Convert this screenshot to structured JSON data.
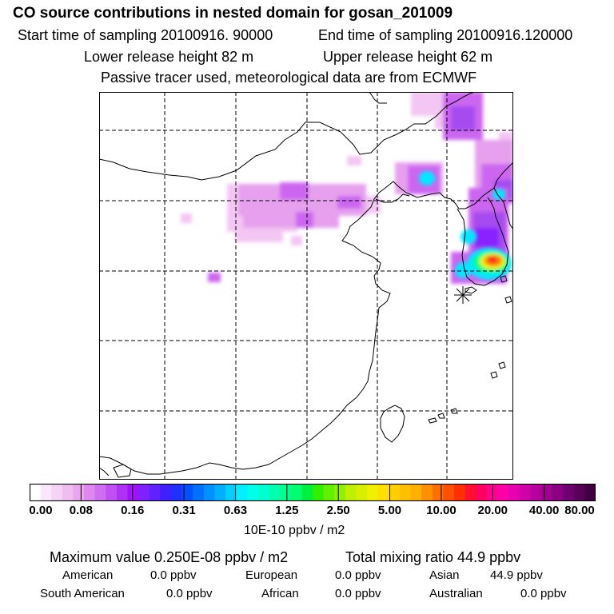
{
  "header": {
    "title": "CO  source contributions in nested domain for gosan_201009",
    "start_label": "Start time of sampling 20100916. 90000",
    "end_label": "End time of sampling 20100916.120000",
    "lower_label": "Lower release height   82 m",
    "upper_label": "Upper release height   62 m",
    "tracer_label": "Passive tracer used, meteorological data are from ECMWF"
  },
  "colorbar": {
    "tick_labels": [
      "0.00",
      "0.08",
      "0.16",
      "0.31",
      "0.63",
      "1.25",
      "2.50",
      "5.00",
      "10.00",
      "20.00",
      "40.00",
      "80.00"
    ],
    "unit_label": "10E-10 ppbv / m2",
    "colors": [
      "#ffffff",
      "#fbe7fb",
      "#f6d2f6",
      "#f0bdf0",
      "#e9a5ee",
      "#dc88f0",
      "#cf6ef2",
      "#c050f4",
      "#b030f6",
      "#a010f8",
      "#8020ff",
      "#6020ff",
      "#4020ff",
      "#2030ff",
      "#0050ff",
      "#0070ff",
      "#0090ff",
      "#00b0ff",
      "#00d0ff",
      "#00f0ff",
      "#00ffe8",
      "#00ffd0",
      "#00ffb0",
      "#00ff90",
      "#00ff70",
      "#00f040",
      "#30f000",
      "#60f000",
      "#90f000",
      "#c0f000",
      "#d8f000",
      "#f0f000",
      "#ffe000",
      "#ffd000",
      "#ffc000",
      "#ffb000",
      "#ff9000",
      "#ff7000",
      "#ff5000",
      "#ff3000",
      "#ff1030",
      "#ff0060",
      "#ff0090",
      "#ff00a8",
      "#e800b0",
      "#d000a8",
      "#b800a0",
      "#a00090",
      "#880080",
      "#700070",
      "#580058",
      "#400040"
    ]
  },
  "summary": {
    "max_label": "Maximum value  0.250E-08 ppbv / m2",
    "total_label": "Total mixing ratio       44.9 ppbv",
    "american_label": "American",
    "american_value": "0.0 ppbv",
    "european_label": "European",
    "european_value": "0.0 ppbv",
    "asian_label": "Asian",
    "asian_value": "44.9 ppbv",
    "south_american_label": "South American",
    "south_american_value": "0.0 ppbv",
    "african_label": "African",
    "african_value": "0.0 ppbv",
    "australian_label": "Australian",
    "australian_value": "0.0 ppbv"
  },
  "map": {
    "receptor_marker": "star-icon",
    "plume_colors": {
      "light": "#f3c6f3",
      "pink": "#e6a0ee",
      "violet": "#cc66f0",
      "purple": "#a64cf0",
      "deep": "#8a20ff",
      "cyan": "#00e8ff",
      "green": "#00ff80",
      "yellow": "#f0f000",
      "orange": "#ff8000",
      "red": "#ff2020"
    }
  }
}
